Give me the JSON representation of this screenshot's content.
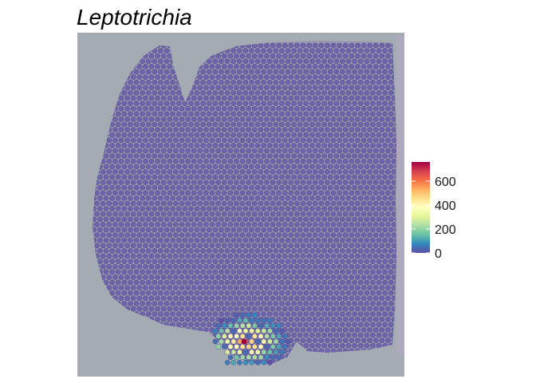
{
  "chart_data": {
    "type": "heatmap",
    "title": "Leptotrichia",
    "xlabel": "",
    "ylabel": "",
    "legend": {
      "placement": "right",
      "min": 0,
      "max": 760,
      "ticks": [
        0,
        200,
        400,
        600
      ],
      "tick_labels": [
        "0",
        "200",
        "400",
        "600"
      ],
      "colormap": "Spectral (reversed)",
      "colors": [
        "#5e4fa2",
        "#3288bd",
        "#66c2a5",
        "#abdda4",
        "#e6f598",
        "#ffffbf",
        "#fee08b",
        "#fdae61",
        "#f46d43",
        "#d53e4f",
        "#9e0142"
      ]
    },
    "background_color": "#a4abb2",
    "tissue_color": "#6d63a8",
    "hotspot": {
      "region": "bottom-center of tissue section",
      "peak_value": 760,
      "typical_values": [
        40,
        100,
        200,
        300,
        400,
        450,
        500
      ]
    }
  }
}
